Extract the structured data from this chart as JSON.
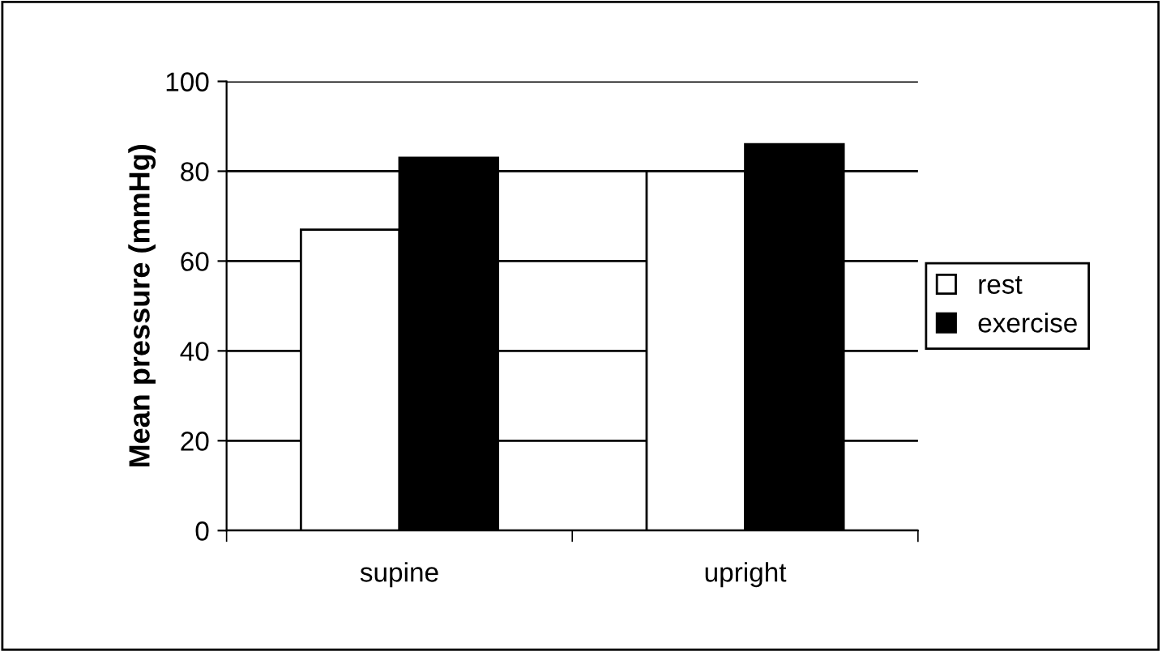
{
  "chart_data": {
    "type": "bar",
    "ylabel": "Mean pressure (mmHg)",
    "categories": [
      "supine",
      "upright"
    ],
    "series": [
      {
        "name": "rest",
        "color": "#ffffff",
        "values": [
          67,
          80
        ]
      },
      {
        "name": "exercise",
        "color": "#000000",
        "values": [
          83,
          86
        ]
      }
    ],
    "ylim": [
      0,
      100
    ],
    "yticks": [
      0,
      20,
      40,
      60,
      80,
      100
    ],
    "grid": "y",
    "legend": "right"
  }
}
